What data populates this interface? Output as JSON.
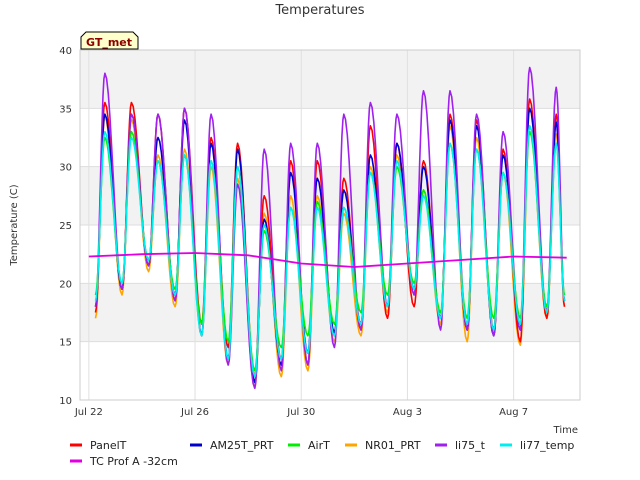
{
  "chart_data": {
    "type": "line",
    "title": "Temperatures",
    "xlabel": "Time",
    "ylabel": "Temperature (C)",
    "badge": "GT_met",
    "ylim": [
      10,
      40
    ],
    "xlim": [
      "2023-07-21T16:00",
      "2023-08-09T12:00"
    ],
    "yticks": [
      10,
      15,
      20,
      25,
      30,
      35,
      40
    ],
    "xticks": [
      {
        "date": "2023-07-22",
        "label": "Jul 22"
      },
      {
        "date": "2023-07-26",
        "label": "Jul 26"
      },
      {
        "date": "2023-07-30",
        "label": "Jul 30"
      },
      {
        "date": "2023-08-03",
        "label": "Aug 3"
      },
      {
        "date": "2023-08-07",
        "label": "Aug 7"
      }
    ],
    "grid": true,
    "legend": "bottom",
    "daily_extremes": {
      "dates": [
        "2023-07-22",
        "2023-07-23",
        "2023-07-24",
        "2023-07-25",
        "2023-07-26",
        "2023-07-27",
        "2023-07-28",
        "2023-07-29",
        "2023-07-30",
        "2023-07-31",
        "2023-08-01",
        "2023-08-02",
        "2023-08-03",
        "2023-08-04",
        "2023-08-05",
        "2023-08-06",
        "2023-08-07",
        "2023-08-08"
      ],
      "series_max": [
        {
          "name": "PanelT",
          "values": [
            35.5,
            35.5,
            34.5,
            35,
            32.5,
            32,
            27.5,
            30.5,
            30.5,
            29,
            33.5,
            32,
            30.5,
            34.5,
            34,
            31.5,
            35.8,
            34.5
          ]
        },
        {
          "name": "AM25T_PRT",
          "values": [
            34.5,
            34.5,
            32.5,
            34,
            32,
            31.5,
            25.5,
            29.5,
            29,
            28,
            31,
            32,
            30,
            34,
            33.5,
            31,
            35,
            33.8
          ]
        },
        {
          "name": "AirT",
          "values": [
            32.5,
            33,
            30.5,
            31,
            30.5,
            30,
            24.5,
            26.5,
            27,
            26.5,
            29.5,
            30,
            28,
            32,
            31.5,
            29.5,
            33,
            32
          ]
        },
        {
          "name": "NR01_PRT",
          "values": [
            34.3,
            34,
            31,
            31.5,
            30,
            29,
            26,
            27.5,
            27.5,
            26,
            30,
            31,
            28,
            33.5,
            32.5,
            29.5,
            33.5,
            32.8
          ]
        },
        {
          "name": "li75_t",
          "values": [
            38,
            34.5,
            34.5,
            35,
            34.5,
            28.5,
            31.5,
            32,
            32,
            34.5,
            35.5,
            34.5,
            36.5,
            36.5,
            34.5,
            33,
            38.5,
            36.8
          ]
        },
        {
          "name": "li77_temp",
          "values": [
            33,
            32.5,
            30.5,
            31,
            30.5,
            30,
            25,
            26.5,
            26.5,
            26.5,
            29.5,
            30.5,
            27.5,
            32,
            31.5,
            29.5,
            33.5,
            32
          ]
        }
      ],
      "series_min": [
        {
          "name": "PanelT",
          "values": [
            17.5,
            19.5,
            21.5,
            18.5,
            16.5,
            14.5,
            12,
            13.5,
            13,
            15.5,
            16,
            17,
            18,
            17,
            16,
            16,
            15,
            17
          ]
        },
        {
          "name": "AM25T_PRT",
          "values": [
            18,
            19.5,
            21.5,
            19,
            15.5,
            13.5,
            11.5,
            13,
            14,
            15.8,
            16.5,
            18,
            19.5,
            17,
            16,
            15.5,
            16,
            17.5
          ]
        },
        {
          "name": "AirT",
          "values": [
            19,
            20,
            22,
            19.5,
            16.5,
            15,
            12.5,
            14.5,
            15.5,
            16.5,
            17.5,
            19,
            20,
            17.5,
            17,
            17,
            17,
            18
          ]
        },
        {
          "name": "NR01_PRT",
          "values": [
            17,
            19,
            21,
            18,
            15.5,
            13,
            11,
            12,
            12.5,
            15,
            15.5,
            17.5,
            19,
            16.5,
            15,
            15.5,
            14.7,
            17
          ]
        },
        {
          "name": "li75_t",
          "values": [
            18,
            19.5,
            21.5,
            18.5,
            15.5,
            13,
            11,
            12.5,
            13,
            14.5,
            16,
            18,
            19,
            16,
            16,
            15.5,
            16,
            17.5
          ]
        },
        {
          "name": "li77_temp",
          "values": [
            18.5,
            20,
            22,
            19,
            15.5,
            13.5,
            12,
            13.5,
            14,
            15.5,
            16.5,
            18,
            19.5,
            17,
            16.5,
            16,
            16.5,
            17.5
          ]
        }
      ]
    },
    "soil_series": {
      "name": "TC Prof A -32cm",
      "x": [
        "2023-07-22",
        "2023-07-24",
        "2023-07-26",
        "2023-07-28",
        "2023-07-30",
        "2023-08-01",
        "2023-08-03",
        "2023-08-05",
        "2023-08-07",
        "2023-08-09"
      ],
      "values": [
        22.3,
        22.5,
        22.6,
        22.4,
        21.7,
        21.4,
        21.7,
        22,
        22.3,
        22.2
      ]
    },
    "legend_items": [
      {
        "name": "PanelT",
        "color": "#ff0000"
      },
      {
        "name": "AM25T_PRT",
        "color": "#0000cd"
      },
      {
        "name": "AirT",
        "color": "#00ee00"
      },
      {
        "name": "NR01_PRT",
        "color": "#ffa500"
      },
      {
        "name": "li75_t",
        "color": "#a020f0"
      },
      {
        "name": "li77_temp",
        "color": "#00eeee"
      },
      {
        "name": "TC Prof A -32cm",
        "color": "#e000e0"
      }
    ]
  }
}
